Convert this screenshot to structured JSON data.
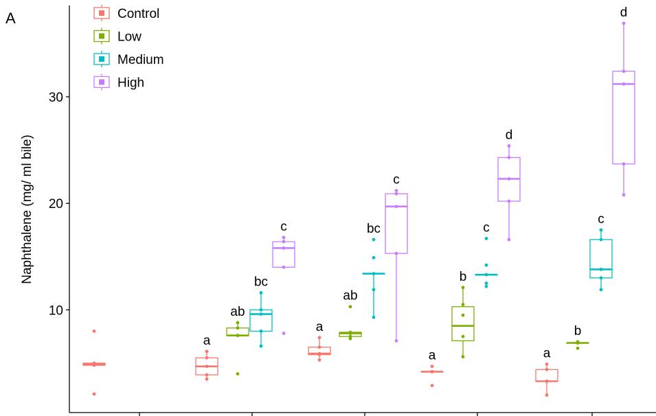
{
  "panel_label": "A",
  "chart_data": {
    "type": "box",
    "title": "",
    "xlabel": "",
    "ylabel": "Naphthalene (mg/ ml bile)",
    "ylim": [
      0,
      39
    ],
    "yticks": [
      10,
      20,
      30
    ],
    "grid": false,
    "legend_position": "top-left",
    "series": [
      {
        "name": "Control",
        "color": "#F8766D"
      },
      {
        "name": "Low",
        "color": "#7CAE00"
      },
      {
        "name": "Medium",
        "color": "#00BFC4"
      },
      {
        "name": "High",
        "color": "#C77CFF"
      }
    ],
    "groups": [
      {
        "boxes": [
          {
            "series": "Control",
            "min": 4.8,
            "q1": 4.8,
            "median": 4.9,
            "q3": 5.0,
            "max": 5.0,
            "points": [
              8.0,
              5.0,
              4.9,
              4.8,
              2.1
            ],
            "letter": ""
          }
        ]
      },
      {
        "boxes": [
          {
            "series": "Control",
            "min": 3.5,
            "q1": 3.9,
            "median": 4.7,
            "q3": 5.5,
            "max": 6.1,
            "points": [
              6.1,
              5.5,
              4.7,
              3.9,
              3.5
            ],
            "letter": "a"
          },
          {
            "series": "Low",
            "min": 7.6,
            "q1": 7.6,
            "median": 7.6,
            "q3": 8.3,
            "max": 8.8,
            "points": [
              8.8,
              8.3,
              7.6,
              7.6,
              4.0
            ],
            "letter": "ab"
          },
          {
            "series": "Medium",
            "min": 6.6,
            "q1": 8.0,
            "median": 9.6,
            "q3": 10.0,
            "max": 11.6,
            "points": [
              11.6,
              10.0,
              9.6,
              8.0,
              6.6
            ],
            "letter": "bc"
          },
          {
            "series": "High",
            "min": 14.0,
            "q1": 14.0,
            "median": 15.8,
            "q3": 16.4,
            "max": 16.8,
            "points": [
              16.8,
              16.4,
              15.8,
              14.0,
              7.8
            ],
            "letter": "c"
          }
        ]
      },
      {
        "boxes": [
          {
            "series": "Control",
            "min": 5.3,
            "q1": 5.8,
            "median": 5.9,
            "q3": 6.5,
            "max": 7.4,
            "points": [
              7.4,
              6.5,
              5.9,
              5.8,
              5.3
            ],
            "letter": "a"
          },
          {
            "series": "Low",
            "min": 7.3,
            "q1": 7.5,
            "median": 7.8,
            "q3": 7.9,
            "max": 7.9,
            "points": [
              10.3,
              7.9,
              7.8,
              7.5,
              7.3
            ],
            "letter": "ab"
          },
          {
            "series": "Medium",
            "min": 9.3,
            "q1": 13.4,
            "median": 13.4,
            "q3": 13.4,
            "max": 13.4,
            "points": [
              16.6,
              14.9,
              13.4,
              11.9,
              9.3
            ],
            "letter": "bc"
          },
          {
            "series": "High",
            "min": 7.1,
            "q1": 15.3,
            "median": 19.7,
            "q3": 20.9,
            "max": 21.2,
            "points": [
              21.2,
              20.9,
              19.7,
              15.3,
              7.1
            ],
            "letter": "c"
          }
        ]
      },
      {
        "boxes": [
          {
            "series": "Control",
            "min": 4.2,
            "q1": 4.2,
            "median": 4.2,
            "q3": 4.2,
            "max": 4.2,
            "points": [
              4.7,
              4.2,
              4.2,
              4.2,
              2.9
            ],
            "letter": "a"
          },
          {
            "series": "Low",
            "min": 5.6,
            "q1": 7.1,
            "median": 8.5,
            "q3": 10.3,
            "max": 12.1,
            "points": [
              12.1,
              10.5,
              9.5,
              7.5,
              5.6
            ],
            "letter": "b"
          },
          {
            "series": "Medium",
            "min": 13.3,
            "q1": 13.3,
            "median": 13.3,
            "q3": 13.3,
            "max": 13.3,
            "points": [
              16.7,
              14.2,
              13.3,
              12.5,
              12.2
            ],
            "letter": "c"
          },
          {
            "series": "High",
            "min": 16.6,
            "q1": 20.2,
            "median": 22.3,
            "q3": 24.3,
            "max": 25.4,
            "points": [
              25.4,
              24.3,
              22.3,
              20.2,
              16.6
            ],
            "letter": "d"
          }
        ]
      },
      {
        "boxes": [
          {
            "series": "Control",
            "min": 2.0,
            "q1": 3.3,
            "median": 3.3,
            "q3": 4.4,
            "max": 4.9,
            "points": [
              4.9,
              4.4,
              3.3,
              3.3,
              2.0
            ],
            "letter": "a"
          },
          {
            "series": "Low",
            "min": 6.9,
            "q1": 6.9,
            "median": 6.9,
            "q3": 6.9,
            "max": 6.9,
            "points": [
              7.0,
              6.9,
              6.9,
              6.4
            ],
            "letter": "b"
          },
          {
            "series": "Medium",
            "min": 11.9,
            "q1": 13.0,
            "median": 13.8,
            "q3": 16.6,
            "max": 17.5,
            "points": [
              17.5,
              16.6,
              13.8,
              13.0,
              11.9
            ],
            "letter": "c"
          },
          {
            "series": "High",
            "min": 20.8,
            "q1": 23.7,
            "median": 31.2,
            "q3": 32.4,
            "max": 36.9,
            "points": [
              36.9,
              32.4,
              31.2,
              23.7,
              20.8
            ],
            "letter": "d"
          }
        ]
      }
    ]
  }
}
